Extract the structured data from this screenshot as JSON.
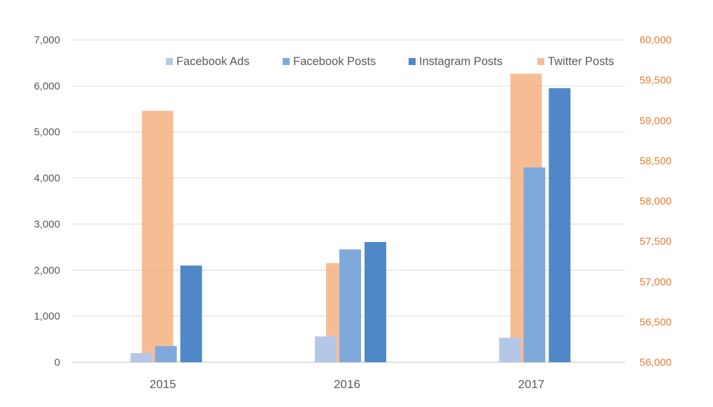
{
  "chart_data": {
    "type": "bar",
    "title": "",
    "categories": [
      "2015",
      "2016",
      "2017"
    ],
    "y_left": {
      "ylim": [
        0,
        7000
      ],
      "ticks": [
        "0",
        "1,000",
        "2,000",
        "3,000",
        "4,000",
        "5,000",
        "6,000",
        "7,000"
      ]
    },
    "y_right": {
      "ylim": [
        56000,
        60000
      ],
      "ticks": [
        "56,000",
        "56,500",
        "57,000",
        "57,500",
        "58,000",
        "58,500",
        "59,000",
        "59,500",
        "60,000"
      ],
      "color": "#ED7D31"
    },
    "series": [
      {
        "name": "Facebook Ads",
        "axis": "left",
        "color": "#B4C7E7",
        "values": [
          200,
          560,
          530
        ]
      },
      {
        "name": "Facebook Posts",
        "axis": "left",
        "color": "#7FA9DA",
        "values": [
          350,
          2450,
          4230
        ]
      },
      {
        "name": "Instagram Posts",
        "axis": "left",
        "color": "#4F88C6",
        "values": [
          2100,
          2610,
          5950
        ]
      },
      {
        "name": "Twitter Posts",
        "axis": "right",
        "color": "#F4B183",
        "opacity": 0.85,
        "values": [
          59120,
          57230,
          59580
        ]
      }
    ],
    "legend_position": "top-right",
    "grid": true
  }
}
